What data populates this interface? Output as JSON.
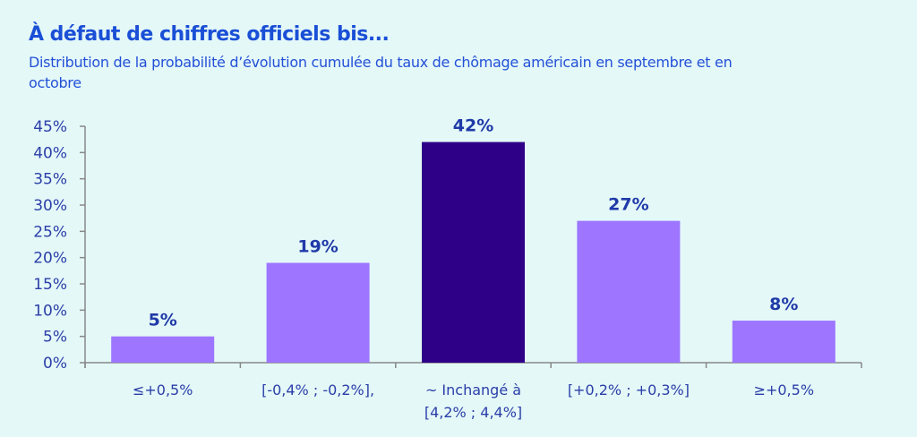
{
  "header": {
    "title": "À défaut de chiffres officiels bis...",
    "subtitle": "Distribution de la probabilité d’évolution cumulée du taux de chômage américain en septembre et en octobre"
  },
  "chart_data": {
    "type": "bar",
    "categories": [
      [
        "≤+0,5%"
      ],
      [
        "[-0,4% ; -0,2%],"
      ],
      [
        "~ Inchangé à",
        "[4,2% ; 4,4%]"
      ],
      [
        "[+0,2% ; +0,3%]"
      ],
      [
        "≥+0,5%"
      ]
    ],
    "values": [
      5,
      19,
      42,
      27,
      8
    ],
    "data_labels": [
      "5%",
      "19%",
      "42%",
      "27%",
      "8%"
    ],
    "ylim": [
      0,
      45
    ],
    "yticks": [
      0,
      5,
      10,
      15,
      20,
      25,
      30,
      35,
      40,
      45
    ],
    "ytick_labels": [
      "0%",
      "5%",
      "10%",
      "15%",
      "20%",
      "25%",
      "30%",
      "35%",
      "40%",
      "45%"
    ],
    "grid": false,
    "highlight_index": 2,
    "colors": {
      "bar": "#9d75ff",
      "highlight": "#2e0088",
      "axis": "#888888",
      "text": "#2a3ea8",
      "label": "#1f3aa8"
    }
  }
}
